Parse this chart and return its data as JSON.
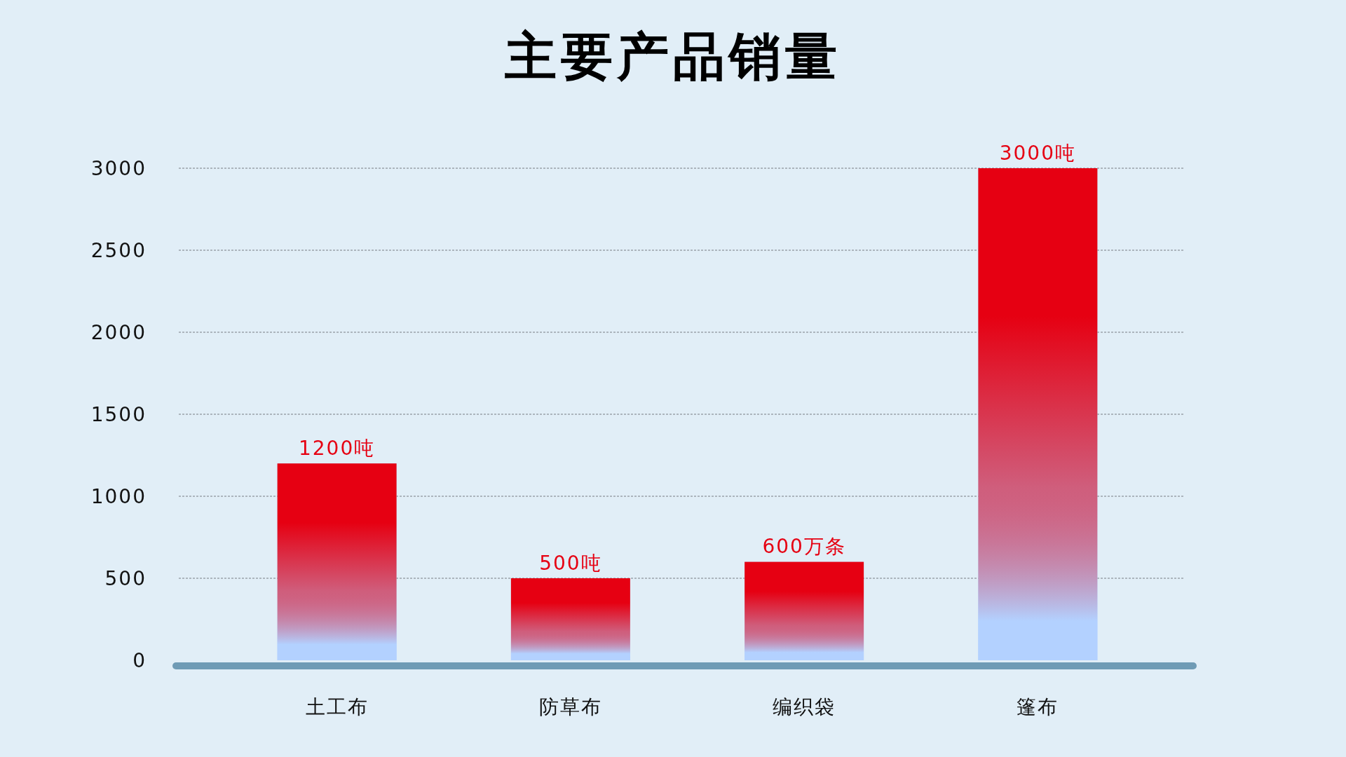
{
  "chart_data": {
    "type": "bar",
    "title": "主要产品销量",
    "categories": [
      "土工布",
      "防草布",
      "编织袋",
      "篷布"
    ],
    "values": [
      1200,
      500,
      600,
      3000
    ],
    "value_labels": [
      "1200吨",
      "500吨",
      "600万条",
      "3000吨"
    ],
    "color": "#e60012",
    "ylim": [
      0,
      3000
    ],
    "yticks": [
      0,
      500,
      1000,
      1500,
      2000,
      2500,
      3000
    ],
    "grid": "y"
  }
}
